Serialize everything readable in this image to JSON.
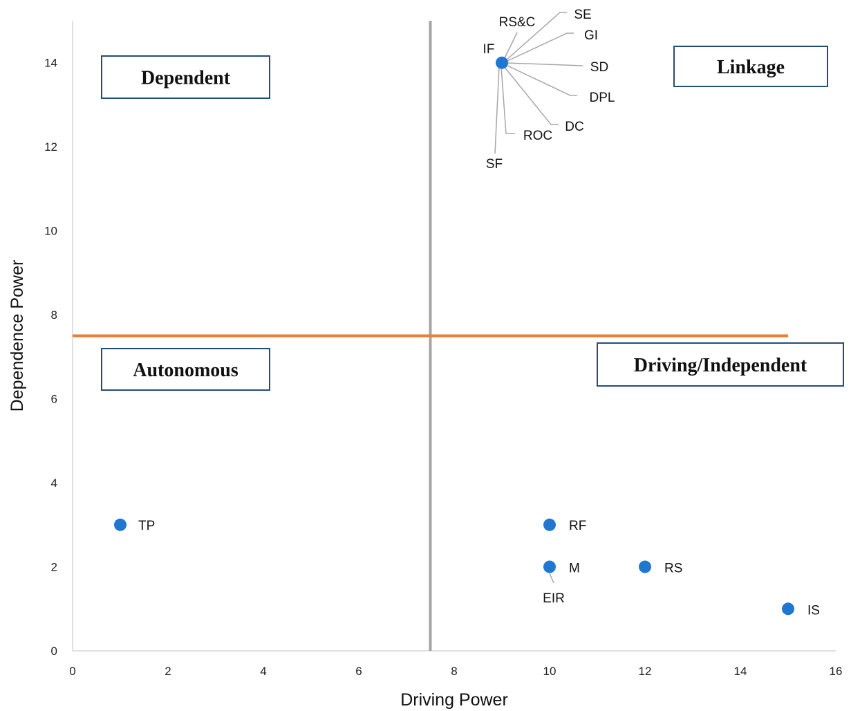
{
  "chart_data": {
    "type": "scatter",
    "xlabel": "Driving Power",
    "ylabel": "Dependence Power",
    "xlim": [
      0,
      16
    ],
    "ylim": [
      0,
      15
    ],
    "x_ticks": [
      0,
      2,
      4,
      6,
      8,
      10,
      12,
      14,
      16
    ],
    "y_ticks": [
      0,
      2,
      4,
      6,
      8,
      10,
      12,
      14
    ],
    "grid": false,
    "marker_color": "#1f77d0",
    "points": [
      {
        "label": "TP",
        "x": 1,
        "y": 3
      },
      {
        "label": "RF",
        "x": 10,
        "y": 3
      },
      {
        "label": "M",
        "x": 10,
        "y": 2
      },
      {
        "label": "EIR",
        "x": 10,
        "y": 2
      },
      {
        "label": "RS",
        "x": 12,
        "y": 2
      },
      {
        "label": "IS",
        "x": 15,
        "y": 1
      },
      {
        "label": "IF",
        "x": 9,
        "y": 14
      },
      {
        "label": "RS&C",
        "x": 9,
        "y": 14
      },
      {
        "label": "SE",
        "x": 9,
        "y": 14
      },
      {
        "label": "GI",
        "x": 9,
        "y": 14
      },
      {
        "label": "SD",
        "x": 9,
        "y": 14
      },
      {
        "label": "DPL",
        "x": 9,
        "y": 14
      },
      {
        "label": "DC",
        "x": 9,
        "y": 14
      },
      {
        "label": "ROC",
        "x": 9,
        "y": 14
      },
      {
        "label": "SF",
        "x": 9,
        "y": 14
      }
    ],
    "reference_lines": [
      {
        "orientation": "vertical",
        "value": 7.5,
        "color": "#a6a6a6"
      },
      {
        "orientation": "horizontal",
        "value": 7.5,
        "x_end": 15,
        "color": "#ed7d31"
      }
    ],
    "quadrant_labels": [
      {
        "text": "Dependent",
        "position": "top-left"
      },
      {
        "text": "Linkage",
        "position": "top-right"
      },
      {
        "text": "Autonomous",
        "position": "bottom-left"
      },
      {
        "text": "Driving/Independent",
        "position": "bottom-right"
      }
    ],
    "quadrant_box_color": "#1f4e79"
  }
}
